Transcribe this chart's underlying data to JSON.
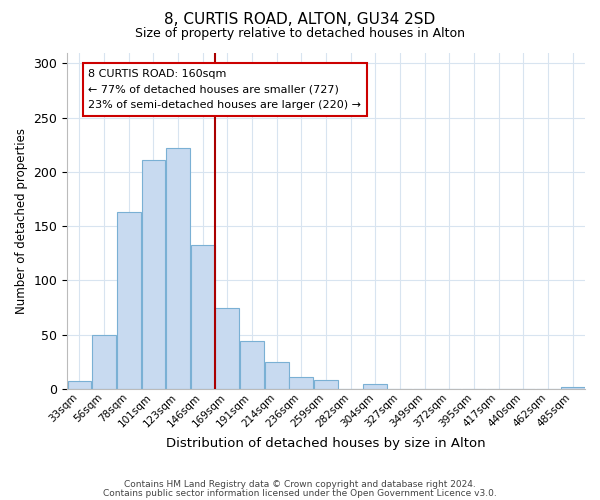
{
  "title_line1": "8, CURTIS ROAD, ALTON, GU34 2SD",
  "title_line2": "Size of property relative to detached houses in Alton",
  "xlabel": "Distribution of detached houses by size in Alton",
  "ylabel": "Number of detached properties",
  "bar_labels": [
    "33sqm",
    "56sqm",
    "78sqm",
    "101sqm",
    "123sqm",
    "146sqm",
    "169sqm",
    "191sqm",
    "214sqm",
    "236sqm",
    "259sqm",
    "282sqm",
    "304sqm",
    "327sqm",
    "349sqm",
    "372sqm",
    "395sqm",
    "417sqm",
    "440sqm",
    "462sqm",
    "485sqm"
  ],
  "bar_values": [
    7,
    50,
    163,
    211,
    222,
    133,
    75,
    44,
    25,
    11,
    8,
    0,
    5,
    0,
    0,
    0,
    0,
    0,
    0,
    0,
    2
  ],
  "bar_color": "#c8daf0",
  "bar_edgecolor": "#7ab0d4",
  "vline_x": 6.0,
  "vline_color": "#aa0000",
  "annotation_line1": "8 CURTIS ROAD: 160sqm",
  "annotation_line2": "← 77% of detached houses are smaller (727)",
  "annotation_line3": "23% of semi-detached houses are larger (220) →",
  "annotation_box_edgecolor": "#cc0000",
  "ylim": [
    0,
    310
  ],
  "yticks": [
    0,
    50,
    100,
    150,
    200,
    250,
    300
  ],
  "footer_line1": "Contains HM Land Registry data © Crown copyright and database right 2024.",
  "footer_line2": "Contains public sector information licensed under the Open Government Licence v3.0.",
  "background_color": "#ffffff",
  "grid_color": "#d8e4f0"
}
